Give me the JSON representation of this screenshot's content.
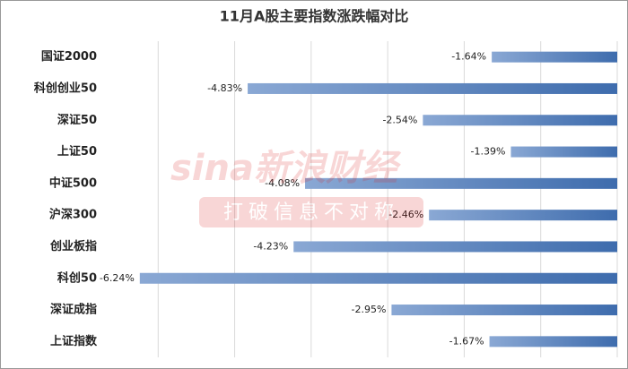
{
  "chart_data": {
    "type": "hbar",
    "title": "11月A股主要指数涨跌幅对比",
    "categories": [
      "国证2000",
      "科创创业50",
      "深证50",
      "上证50",
      "中证500",
      "沪深300",
      "创业板指",
      "科创50",
      "深证成指",
      "上证指数"
    ],
    "values": [
      -1.64,
      -4.83,
      -2.54,
      -1.39,
      -4.08,
      -2.46,
      -4.23,
      -6.24,
      -2.95,
      -1.67
    ],
    "value_labels": [
      "-1.64%",
      "-4.83%",
      "-2.54%",
      "-1.39%",
      "-4.08%",
      "-2.46%",
      "-4.23%",
      "-6.24%",
      "-2.95%",
      "-1.67%"
    ],
    "color": "#4a77b4",
    "xlim": [
      -7,
      0
    ],
    "xticks": [
      -6,
      -5,
      -4,
      -3,
      -2,
      -1,
      0
    ],
    "grid": true,
    "watermark": {
      "brand": "sina新浪财经",
      "slogan": "打破信息不对称"
    }
  }
}
